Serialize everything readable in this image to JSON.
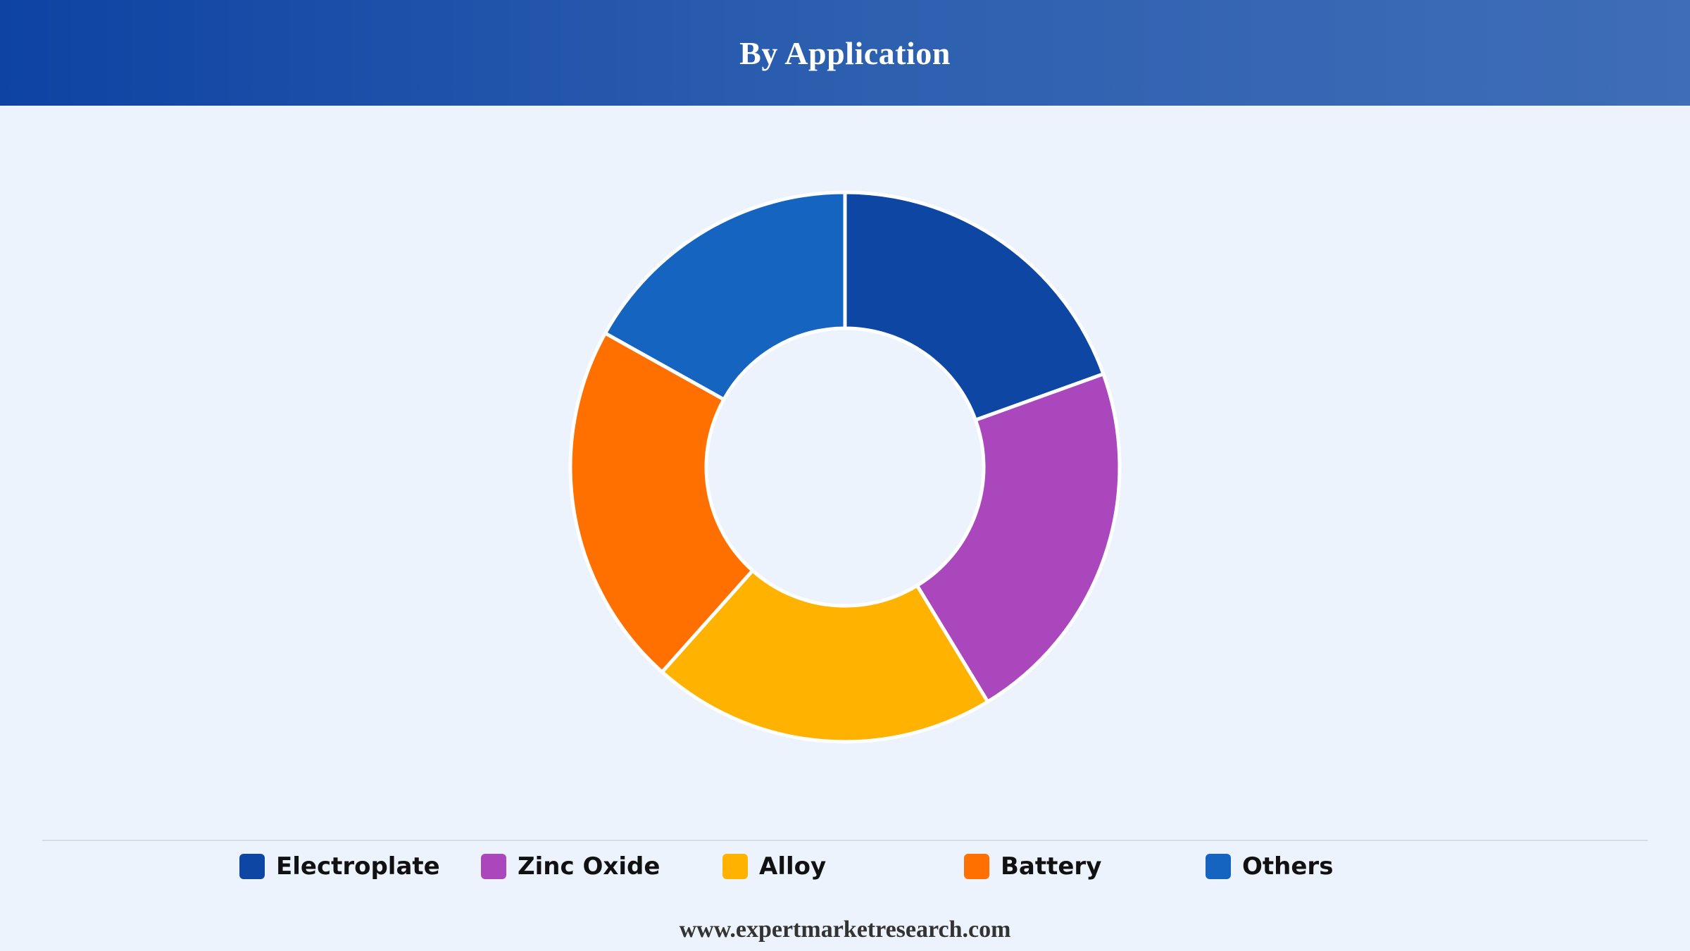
{
  "header": {
    "title": "By Application"
  },
  "chart_data": {
    "type": "pie",
    "variant": "donut",
    "title": "By Application",
    "categories": [
      "Electroplate",
      "Zinc Oxide",
      "Alloy",
      "Battery",
      "Others"
    ],
    "values": [
      19.5,
      21.8,
      20.3,
      21.5,
      16.9
    ],
    "colors": [
      "#0e46a3",
      "#aa47bc",
      "#ffb300",
      "#ff7000",
      "#1565c0"
    ],
    "legend_position": "bottom"
  },
  "footer": {
    "website": "www.expertmarketresearch.com"
  }
}
